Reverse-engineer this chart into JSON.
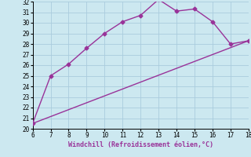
{
  "line1_x": [
    6,
    7,
    8,
    9,
    10,
    11,
    12,
    13,
    14,
    15,
    16,
    17,
    18
  ],
  "line1_y": [
    20.5,
    25.0,
    26.1,
    27.6,
    29.0,
    30.1,
    30.7,
    32.2,
    31.1,
    31.3,
    30.1,
    28.0,
    28.3
  ],
  "line2_x": [
    6,
    18
  ],
  "line2_y": [
    20.5,
    28.3
  ],
  "color": "#993399",
  "bg_color": "#cce8f0",
  "grid_color": "#aaccdd",
  "xlabel": "Windchill (Refroidissement éolien,°C)",
  "xlabel_color": "#993399",
  "xlim": [
    6,
    18
  ],
  "ylim": [
    20,
    32
  ],
  "xticks": [
    6,
    7,
    8,
    9,
    10,
    11,
    12,
    13,
    14,
    15,
    16,
    17,
    18
  ],
  "yticks": [
    20,
    21,
    22,
    23,
    24,
    25,
    26,
    27,
    28,
    29,
    30,
    31,
    32
  ],
  "marker": "D",
  "markersize": 2.5,
  "linewidth": 1.0
}
